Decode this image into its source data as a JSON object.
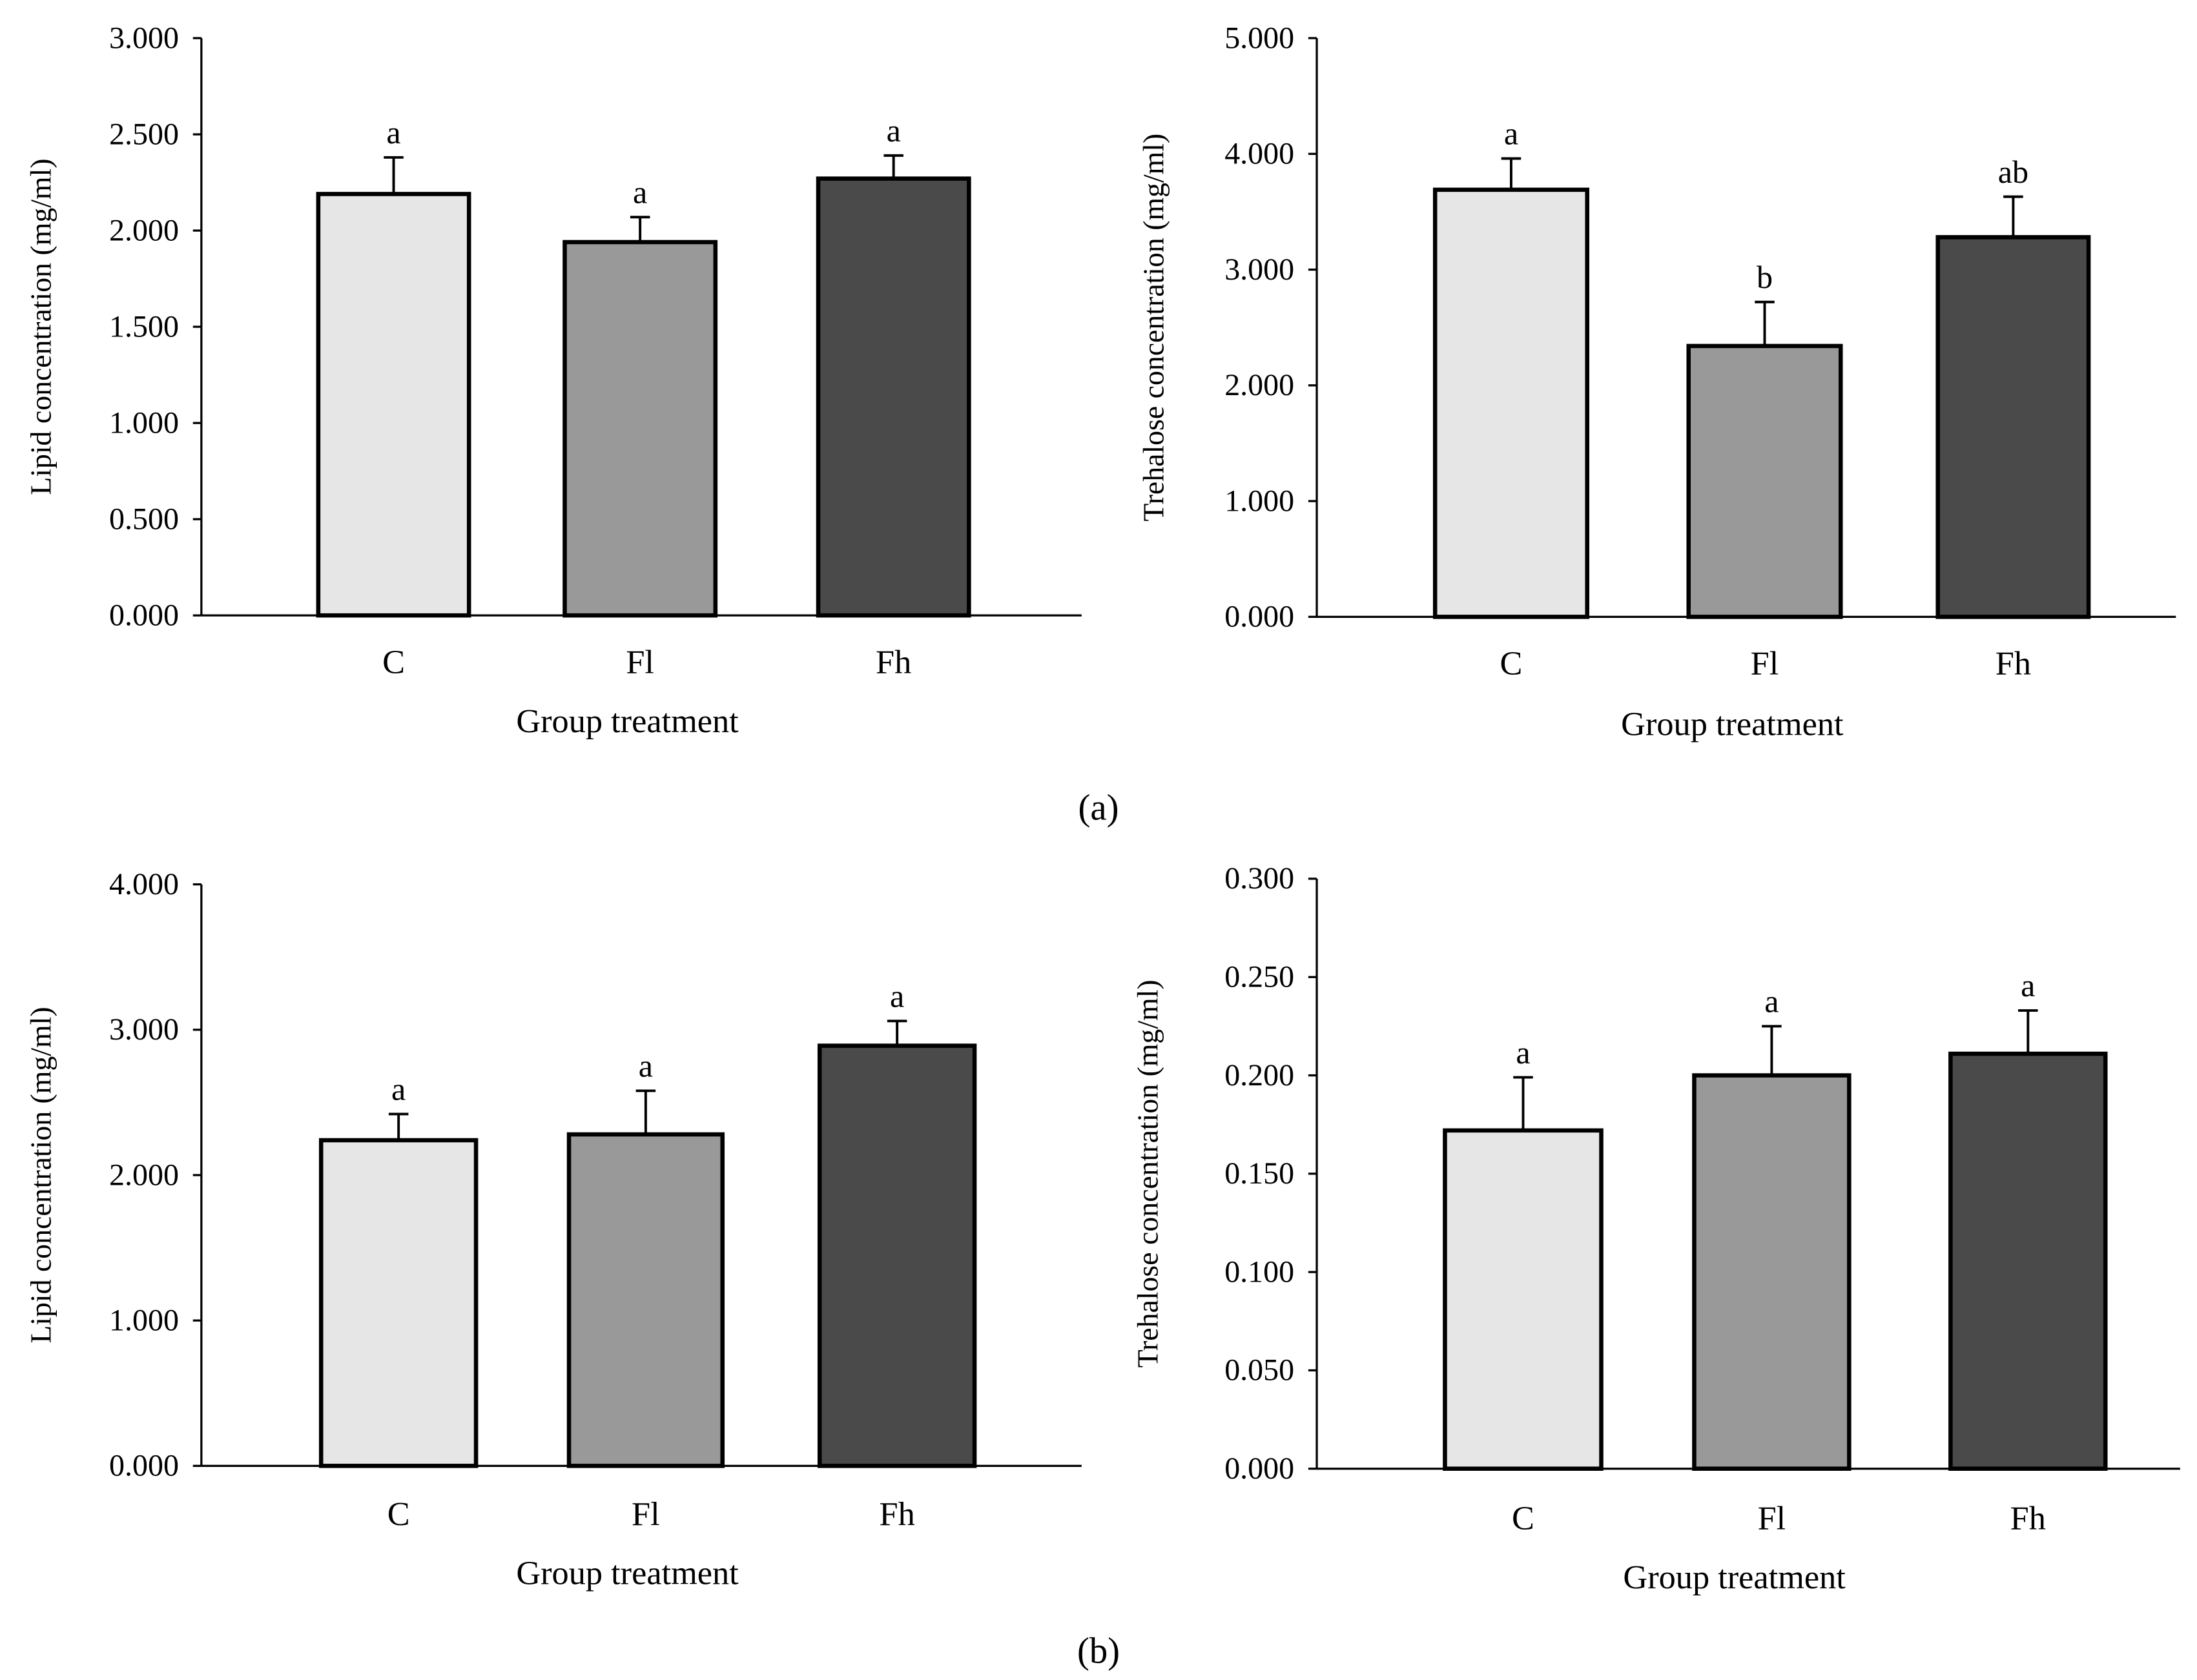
{
  "colors": {
    "C": "#e6e6e6",
    "Fl": "#999999",
    "Fh": "#4a4a4a",
    "outline": "#000000"
  },
  "panel_labels": {
    "a": "(a)",
    "b": "(b)"
  },
  "chart_data": [
    {
      "type": "bar",
      "panel": "a",
      "position": "left",
      "xlabel": "Group treatment",
      "ylabel": "Lipid concentration (mg/ml)",
      "categories": [
        "C",
        "Fl",
        "Fh"
      ],
      "values": [
        2.19,
        1.94,
        2.27
      ],
      "error_upper": [
        2.38,
        2.07,
        2.39
      ],
      "significance": [
        "a",
        "a",
        "a"
      ],
      "ylim": [
        0,
        3
      ],
      "yticks": [
        "0.000",
        "0.500",
        "1.000",
        "1.500",
        "2.000",
        "2.500",
        "3.000"
      ],
      "grid": false
    },
    {
      "type": "bar",
      "panel": "a",
      "position": "right",
      "xlabel": "Group treatment",
      "ylabel": "Trehalose concentration (mg/ml)",
      "categories": [
        "C",
        "Fl",
        "Fh"
      ],
      "values": [
        3.69,
        2.34,
        3.28
      ],
      "error_upper": [
        3.96,
        2.72,
        3.63
      ],
      "significance": [
        "a",
        "b",
        "ab"
      ],
      "ylim": [
        0,
        5
      ],
      "yticks": [
        "0.000",
        "1.000",
        "2.000",
        "3.000",
        "4.000",
        "5.000"
      ],
      "grid": false
    },
    {
      "type": "bar",
      "panel": "b",
      "position": "left",
      "xlabel": "Group treatment",
      "ylabel": "Lipid concentration (mg/ml)",
      "categories": [
        "C",
        "Fl",
        "Fh"
      ],
      "values": [
        2.24,
        2.28,
        2.89
      ],
      "error_upper": [
        2.42,
        2.58,
        3.06
      ],
      "significance": [
        "a",
        "a",
        "a"
      ],
      "ylim": [
        0,
        4
      ],
      "yticks": [
        "0.000",
        "1.000",
        "2.000",
        "3.000",
        "4.000"
      ],
      "grid": false
    },
    {
      "type": "bar",
      "panel": "b",
      "position": "right",
      "xlabel": "Group treatment",
      "ylabel": "Trehalose concentration (mg/ml)",
      "categories": [
        "C",
        "Fl",
        "Fh"
      ],
      "values": [
        0.172,
        0.2,
        0.211
      ],
      "error_upper": [
        0.199,
        0.225,
        0.233
      ],
      "significance": [
        "a",
        "a",
        "a"
      ],
      "ylim": [
        0,
        0.3
      ],
      "yticks": [
        "0.000",
        "0.050",
        "0.100",
        "0.150",
        "0.200",
        "0.250",
        "0.300"
      ],
      "grid": false
    }
  ]
}
